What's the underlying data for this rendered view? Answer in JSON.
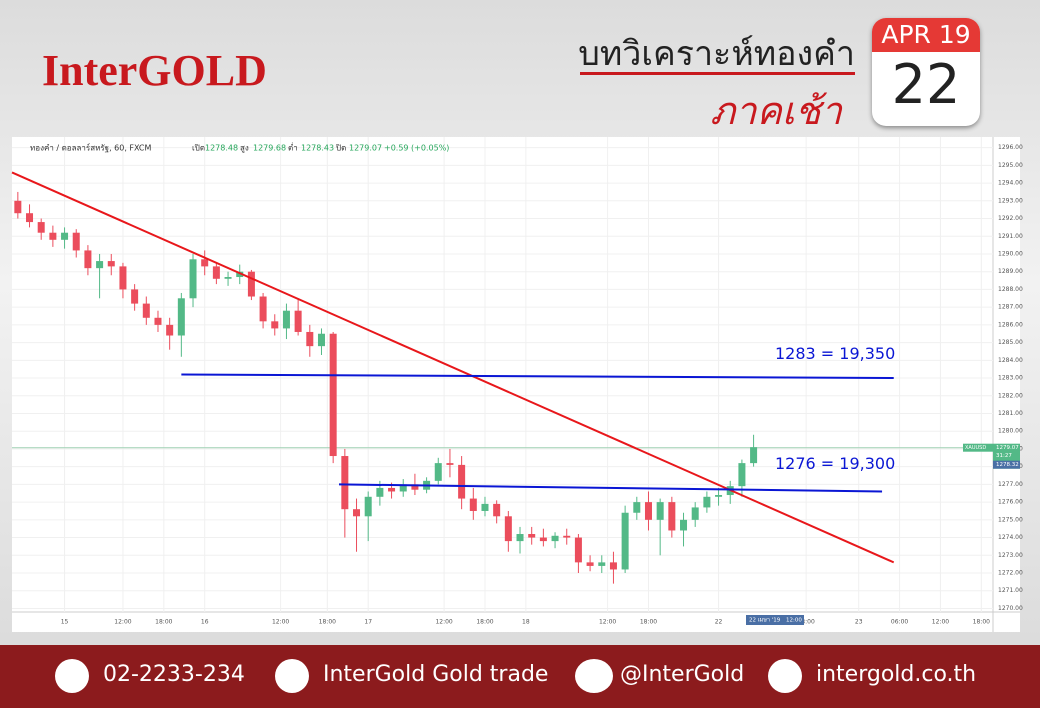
{
  "header": {
    "brand": "InterGOLD",
    "title": "บทวิเคราะห์ทองคำ",
    "subtitle": "ภาคเช้า",
    "month": "APR 19",
    "day": "22"
  },
  "chart_data": {
    "type": "candlestick",
    "symbol": "ทองคำ / ดอลลาร์สหรัฐ, 60, FXCM",
    "ohlc_labels": [
      "เปิด",
      "สูง",
      "ต่ำ",
      "ปิด"
    ],
    "ohlc_values": [
      1278.48,
      1279.68,
      1278.43,
      1279.07
    ],
    "change": "+0.59 (+0.05%)",
    "price_tag": {
      "name": "XAUUSD",
      "value": 1279.07,
      "countdown": "31:27",
      "bid": "1278.32"
    },
    "x_tag": [
      "22 เมษา '19",
      "12:00"
    ],
    "up_color": "#53b987",
    "down_color": "#eb4d5c",
    "grid": true,
    "xlim": [
      0,
      168
    ],
    "ylim": [
      1269.8,
      1296.6
    ],
    "xticks": [
      {
        "value": 9,
        "label": "15"
      },
      {
        "value": 19,
        "label": "12:00"
      },
      {
        "value": 26,
        "label": "18:00"
      },
      {
        "value": 33,
        "label": "16"
      },
      {
        "value": 46,
        "label": "12:00"
      },
      {
        "value": 54,
        "label": "18:00"
      },
      {
        "value": 61,
        "label": "17"
      },
      {
        "value": 74,
        "label": "12:00"
      },
      {
        "value": 81,
        "label": "18:00"
      },
      {
        "value": 88,
        "label": "18"
      },
      {
        "value": 102,
        "label": "12:00"
      },
      {
        "value": 109,
        "label": "18:00"
      },
      {
        "value": 121,
        "label": "22"
      },
      {
        "value": 136,
        "label": "18:00"
      },
      {
        "value": 145,
        "label": "23"
      },
      {
        "value": 152,
        "label": "06:00"
      },
      {
        "value": 159,
        "label": "12:00"
      },
      {
        "value": 166,
        "label": "18:00"
      }
    ],
    "yticks": [
      {
        "value": 1270,
        "label": "1270.00"
      },
      {
        "value": 1271,
        "label": "1271.00"
      },
      {
        "value": 1272,
        "label": "1272.00"
      },
      {
        "value": 1273,
        "label": "1273.00"
      },
      {
        "value": 1274,
        "label": "1274.00"
      },
      {
        "value": 1275,
        "label": "1275.00"
      },
      {
        "value": 1276,
        "label": "1276.00"
      },
      {
        "value": 1277,
        "label": "1277.00"
      },
      {
        "value": 1278,
        "label": "1278.00"
      },
      {
        "value": 1279,
        "label": "1279.00"
      },
      {
        "value": 1280,
        "label": "1280.00"
      },
      {
        "value": 1281,
        "label": "1281.00"
      },
      {
        "value": 1282,
        "label": "1282.00"
      },
      {
        "value": 1283,
        "label": "1283.00"
      },
      {
        "value": 1284,
        "label": "1284.00"
      },
      {
        "value": 1285,
        "label": "1285.00"
      },
      {
        "value": 1286,
        "label": "1286.00"
      },
      {
        "value": 1287,
        "label": "1287.00"
      },
      {
        "value": 1288,
        "label": "1288.00"
      },
      {
        "value": 1289,
        "label": "1289.00"
      },
      {
        "value": 1290,
        "label": "1290.00"
      },
      {
        "value": 1291,
        "label": "1291.00"
      },
      {
        "value": 1292,
        "label": "1292.00"
      },
      {
        "value": 1293,
        "label": "1293.00"
      },
      {
        "value": 1294,
        "label": "1294.00"
      },
      {
        "value": 1295,
        "label": "1295.00"
      },
      {
        "value": 1296,
        "label": "1296.00"
      }
    ],
    "x": [
      1,
      3,
      5,
      7,
      9,
      11,
      13,
      15,
      17,
      19,
      21,
      23,
      25,
      27,
      29,
      31,
      33,
      35,
      37,
      39,
      41,
      43,
      45,
      47,
      49,
      51,
      53,
      55,
      57,
      59,
      61,
      63,
      65,
      67,
      69,
      71,
      73,
      75,
      77,
      79,
      81,
      83,
      85,
      87,
      89,
      91,
      93,
      95,
      97,
      99,
      101,
      103,
      105,
      107,
      109,
      111,
      113,
      115,
      117,
      119,
      121,
      123,
      125,
      127
    ],
    "open": [
      1293,
      1292.3,
      1291.8,
      1291.2,
      1290.8,
      1291.2,
      1290.2,
      1289.2,
      1289.6,
      1289.3,
      1288,
      1287.2,
      1286.4,
      1286,
      1285.4,
      1287.5,
      1289.7,
      1289.3,
      1288.6,
      1288.7,
      1289,
      1287.6,
      1286.2,
      1285.8,
      1286.8,
      1285.6,
      1284.8,
      1285.5,
      1278.6,
      1275.6,
      1275.2,
      1276.3,
      1276.8,
      1276.6,
      1277,
      1276.7,
      1277.2,
      1278.2,
      1278.1,
      1276.2,
      1275.5,
      1275.9,
      1275.2,
      1273.8,
      1274.2,
      1274,
      1273.8,
      1274.1,
      1274,
      1272.6,
      1272.4,
      1272.6,
      1272.2,
      1275.4,
      1276,
      1275,
      1276,
      1274.4,
      1275,
      1275.7,
      1276.3,
      1276.4,
      1276.9,
      1278.2
    ],
    "high": [
      1293.5,
      1292.8,
      1292,
      1291.6,
      1291.5,
      1291.4,
      1290.5,
      1290,
      1290,
      1289.5,
      1288.3,
      1287.6,
      1286.8,
      1286.4,
      1287.8,
      1290,
      1290.2,
      1289.5,
      1289,
      1289.4,
      1289.1,
      1287.8,
      1286.6,
      1287.2,
      1287.5,
      1286,
      1285.8,
      1285.6,
      1279,
      1276.2,
      1276.6,
      1277.2,
      1277.1,
      1277.3,
      1277.6,
      1277.4,
      1278.5,
      1279,
      1278.6,
      1276.8,
      1276.3,
      1276.1,
      1275.5,
      1274.6,
      1274.6,
      1274.5,
      1274.3,
      1274.5,
      1274.2,
      1273,
      1273,
      1273.2,
      1275.8,
      1276.3,
      1276.6,
      1276.2,
      1276.3,
      1275.4,
      1276,
      1276.6,
      1276.8,
      1277.2,
      1278.4,
      1279.8
    ],
    "low": [
      1292,
      1291.5,
      1290.8,
      1290.4,
      1290.3,
      1289.8,
      1288.8,
      1287.5,
      1288.8,
      1287.5,
      1286.8,
      1286,
      1285.6,
      1284.6,
      1284.2,
      1287,
      1288.8,
      1288.3,
      1288.2,
      1288.3,
      1287.4,
      1285.8,
      1285.4,
      1285.2,
      1285.4,
      1284.2,
      1284.3,
      1278.2,
      1274,
      1273.2,
      1273.8,
      1275.8,
      1276.2,
      1276.3,
      1276.4,
      1276.5,
      1277,
      1277.4,
      1275.6,
      1275,
      1275.2,
      1274.8,
      1273.2,
      1273.1,
      1273.6,
      1273.5,
      1273.4,
      1273.6,
      1272,
      1272.1,
      1272,
      1271.4,
      1272,
      1275,
      1274.4,
      1273,
      1274,
      1273.5,
      1274.6,
      1275.4,
      1275.8,
      1275.9,
      1276.3,
      1278
    ],
    "close": [
      1292.3,
      1291.8,
      1291.2,
      1290.8,
      1291.2,
      1290.2,
      1289.2,
      1289.6,
      1289.3,
      1288,
      1287.2,
      1286.4,
      1286,
      1285.4,
      1287.5,
      1289.7,
      1289.3,
      1288.6,
      1288.7,
      1289,
      1287.6,
      1286.2,
      1285.8,
      1286.8,
      1285.6,
      1284.8,
      1285.5,
      1278.6,
      1275.6,
      1275.2,
      1276.3,
      1276.8,
      1276.6,
      1277,
      1276.7,
      1277.2,
      1278.2,
      1278.1,
      1276.2,
      1275.5,
      1275.9,
      1275.2,
      1273.8,
      1274.2,
      1274,
      1273.8,
      1274.1,
      1274,
      1272.6,
      1272.4,
      1272.6,
      1272.2,
      1275.4,
      1276,
      1275,
      1276,
      1274.4,
      1275,
      1275.7,
      1276.3,
      1276.4,
      1276.9,
      1278.2,
      1279.1
    ],
    "lines": [
      {
        "color": "#e8171b",
        "x": [
          0,
          151
        ],
        "y": [
          1294.6,
          1272.6
        ]
      },
      {
        "color": "#0a16d4",
        "x": [
          29,
          151
        ],
        "y": [
          1283.2,
          1283.0
        ],
        "label": "1283 = 19,350"
      },
      {
        "color": "#0a16d4",
        "x": [
          56,
          149
        ],
        "y": [
          1277.0,
          1276.6
        ],
        "label": "1276 = 19,300"
      }
    ]
  },
  "footer": {
    "phone": "02-2233-234",
    "facebook": "InterGold Gold trade",
    "line": "@InterGold",
    "web": "intergold.co.th"
  }
}
